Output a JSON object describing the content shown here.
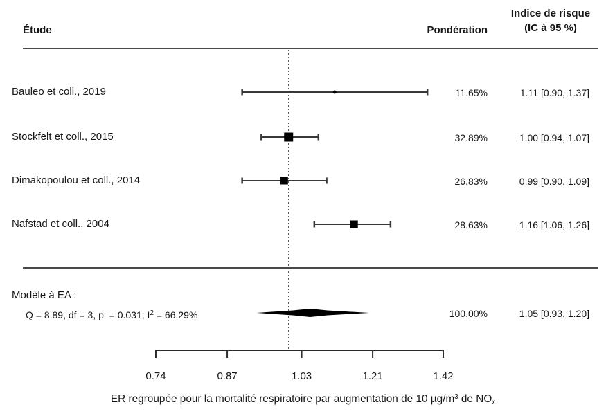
{
  "header": {
    "study_col": "Étude",
    "weight_col": "Pondération",
    "estimate_col_line1": "Indice de risque",
    "estimate_col_line2": "(IC à 95 %)"
  },
  "model": {
    "label": "Modèle à EA :",
    "heterogeneity_prefix": "Q = 8.89, df = 3, p  = 0.031; I",
    "heterogeneity_sup": "2",
    "heterogeneity_suffix": " = 66.29%"
  },
  "chart_data": {
    "type": "forest",
    "x_scale": "log",
    "axis_ticks": [
      0.74,
      0.87,
      1.03,
      1.21,
      1.42
    ],
    "xlim": [
      0.74,
      1.42
    ],
    "null_line": 1.0,
    "grid": false,
    "studies": [
      {
        "label": "Bauleo et coll., 2019",
        "weight_pct": 11.65,
        "weight_label": "11.65%",
        "estimate": 1.11,
        "ci_low": 0.9,
        "ci_high": 1.37,
        "estimate_label": "1.11 [0.90, 1.37]"
      },
      {
        "label": "Stockfelt et coll., 2015",
        "weight_pct": 32.89,
        "weight_label": "32.89%",
        "estimate": 1.0,
        "ci_low": 0.94,
        "ci_high": 1.07,
        "estimate_label": "1.00 [0.94, 1.07]"
      },
      {
        "label": "Dimakopoulou et coll., 2014",
        "weight_pct": 26.83,
        "weight_label": "26.83%",
        "estimate": 0.99,
        "ci_low": 0.9,
        "ci_high": 1.09,
        "estimate_label": "0.99 [0.90, 1.09]"
      },
      {
        "label": "Nafstad et coll., 2004",
        "weight_pct": 28.63,
        "weight_label": "28.63%",
        "estimate": 1.16,
        "ci_low": 1.06,
        "ci_high": 1.26,
        "estimate_label": "1.16 [1.06, 1.26]"
      }
    ],
    "pooled": {
      "weight_pct": 100.0,
      "weight_label": "100.00%",
      "estimate": 1.05,
      "ci_low": 0.93,
      "ci_high": 1.2,
      "estimate_label": "1.05 [0.93, 1.20]"
    },
    "xlabel": "ER regroupée pour la mortalité respiratoire par augmentation de 10 µg/m3 de NOx",
    "xlabel_parts": {
      "text_before_sup": "ER regroupée pour la mortalité respiratoire par augmentation de 10 µg/m",
      "sup": "3",
      "text_mid": " de NO",
      "sub": "x"
    },
    "colors": {
      "text": "#161616",
      "line": "#383838",
      "marker": "#000000",
      "rule": "#4a4a4a",
      "dotted": "#5a5a5a",
      "axis": "#2b2b2b"
    }
  }
}
